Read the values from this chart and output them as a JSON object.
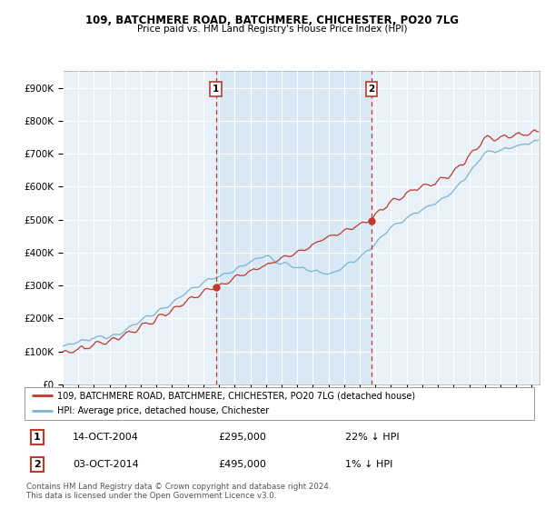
{
  "title1": "109, BATCHMERE ROAD, BATCHMERE, CHICHESTER, PO20 7LG",
  "title2": "Price paid vs. HM Land Registry's House Price Index (HPI)",
  "hpi_color": "#7ab3d4",
  "price_color": "#c0392b",
  "vline_color": "#c0392b",
  "fill_color": "#d6e8f5",
  "transaction1": {
    "date": "14-OCT-2004",
    "price": 295000,
    "hpi_diff": "22% ↓ HPI",
    "year": 2004.79
  },
  "transaction2": {
    "date": "03-OCT-2014",
    "price": 495000,
    "hpi_diff": "1% ↓ HPI",
    "year": 2014.75
  },
  "legend_label1": "109, BATCHMERE ROAD, BATCHMERE, CHICHESTER, PO20 7LG (detached house)",
  "legend_label2": "HPI: Average price, detached house, Chichester",
  "footnote": "Contains HM Land Registry data © Crown copyright and database right 2024.\nThis data is licensed under the Open Government Licence v3.0.",
  "ylim": [
    0,
    950000
  ],
  "yticks": [
    0,
    100000,
    200000,
    300000,
    400000,
    500000,
    600000,
    700000,
    800000,
    900000
  ],
  "ytick_labels": [
    "£0",
    "£100K",
    "£200K",
    "£300K",
    "£400K",
    "£500K",
    "£600K",
    "£700K",
    "£800K",
    "£900K"
  ],
  "xlim": [
    1995,
    2025.5
  ],
  "background_plot": "#e8f0f8",
  "background_fig": "#ffffff"
}
